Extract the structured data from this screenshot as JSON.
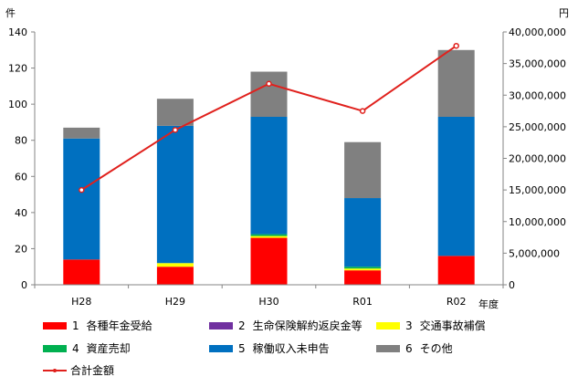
{
  "chart_data": {
    "type": "bar",
    "stacked": true,
    "categories": [
      "H28",
      "H29",
      "H30",
      "R01",
      "R02"
    ],
    "xlabel": "年度",
    "ylabel_left": "件",
    "ylabel_right": "円",
    "ylim_left": [
      0,
      140
    ],
    "yticks_left": [
      0,
      20,
      40,
      60,
      80,
      100,
      120,
      140
    ],
    "ylim_right": [
      0,
      40000000
    ],
    "yticks_right": [
      "0",
      "5,000,000",
      "10,000,000",
      "15,000,000",
      "20,000,000",
      "25,000,000",
      "30,000,000",
      "35,000,000",
      "40,000,000"
    ],
    "series": [
      {
        "num": "1",
        "name": "各種年金受給",
        "color": "#ff0000",
        "values": [
          14,
          10,
          26,
          8,
          16
        ]
      },
      {
        "num": "2",
        "name": "生命保険解約返戻金等",
        "color": "#7030a0",
        "values": [
          0,
          0,
          0,
          0,
          0
        ]
      },
      {
        "num": "3",
        "name": "交通事故補償",
        "color": "#ffff00",
        "values": [
          0,
          2,
          1,
          1,
          0
        ]
      },
      {
        "num": "4",
        "name": "資産売却",
        "color": "#00b050",
        "values": [
          0,
          0,
          1,
          1,
          0
        ]
      },
      {
        "num": "5",
        "name": "稼働収入未申告",
        "color": "#0070c0",
        "values": [
          67,
          76,
          65,
          38,
          77
        ]
      },
      {
        "num": "6",
        "name": "その他",
        "color": "#808080",
        "values": [
          6,
          15,
          25,
          31,
          37
        ]
      }
    ],
    "line": {
      "name": "合計金額",
      "color": "#e0201c",
      "axis": "right",
      "values": [
        15000000,
        24500000,
        31800000,
        27500000,
        37800000
      ]
    },
    "grid": false,
    "legend_position": "bottom"
  }
}
